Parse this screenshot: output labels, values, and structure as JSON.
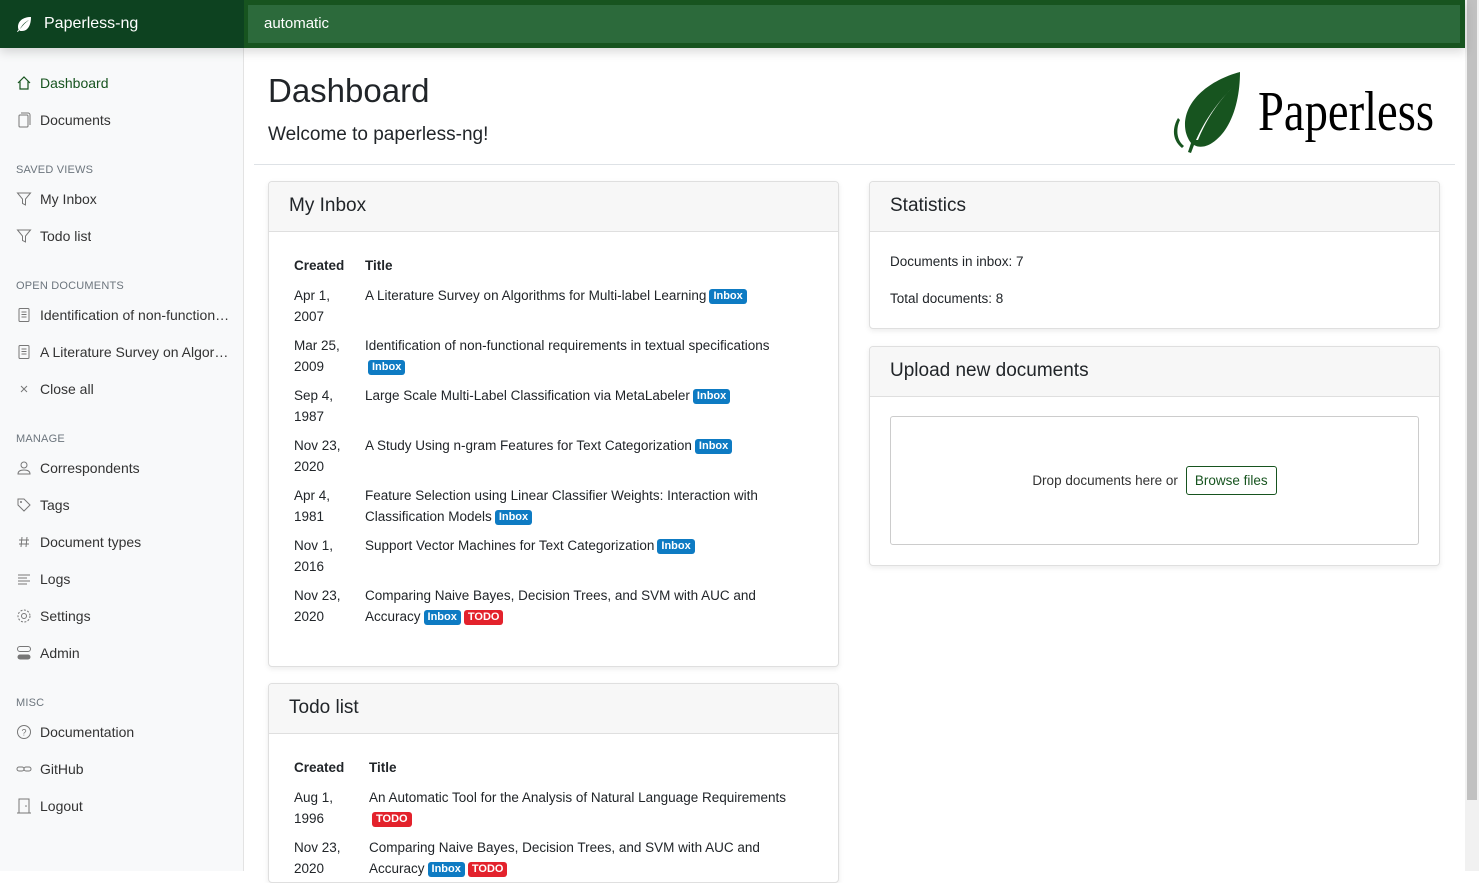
{
  "app": {
    "name": "Paperless-ng",
    "search_value": "automatic",
    "logo_text": "Paperless"
  },
  "colors": {
    "brand": "#17541f",
    "inbox_badge": "#0e7bc3",
    "todo_badge": "#e3222c"
  },
  "sidebar": {
    "items": [
      {
        "label": "Dashboard",
        "icon": "house-icon",
        "active": true
      },
      {
        "label": "Documents",
        "icon": "files-icon"
      }
    ],
    "saved_views_heading": "SAVED VIEWS",
    "saved_views": [
      {
        "label": "My Inbox",
        "icon": "funnel-icon"
      },
      {
        "label": "Todo list",
        "icon": "funnel-icon"
      }
    ],
    "open_heading": "OPEN DOCUMENTS",
    "open_documents": [
      {
        "label": "Identification of non-functional requirements in textual specifications",
        "icon": "file-text-icon"
      },
      {
        "label": "A Literature Survey on Algorithms for Multi-label Learning",
        "icon": "file-text-icon"
      },
      {
        "label": "Close all",
        "icon": "x-icon"
      }
    ],
    "manage_heading": "MANAGE",
    "manage": [
      {
        "label": "Correspondents",
        "icon": "person-icon"
      },
      {
        "label": "Tags",
        "icon": "tags-icon"
      },
      {
        "label": "Document types",
        "icon": "hash-icon"
      },
      {
        "label": "Logs",
        "icon": "text-left-icon"
      },
      {
        "label": "Settings",
        "icon": "gear-icon"
      },
      {
        "label": "Admin",
        "icon": "toggles-icon"
      }
    ],
    "misc_heading": "MISC",
    "misc": [
      {
        "label": "Documentation",
        "icon": "question-circle-icon"
      },
      {
        "label": "GitHub",
        "icon": "link-icon"
      },
      {
        "label": "Logout",
        "icon": "door-icon"
      }
    ]
  },
  "page": {
    "title": "Dashboard",
    "subtitle": "Welcome to paperless-ng!"
  },
  "inbox": {
    "title": "My Inbox",
    "col_created": "Created",
    "col_title": "Title",
    "rows": [
      {
        "date": "Apr 1, 2007",
        "title": "A Literature Survey on Algorithms for Multi-label Learning",
        "tags": [
          "Inbox"
        ]
      },
      {
        "date": "Mar 25, 2009",
        "title": "Identification of non-functional requirements in textual specifications",
        "tags": [
          "Inbox"
        ]
      },
      {
        "date": "Sep 4, 1987",
        "title": "Large Scale Multi-Label Classification via MetaLabeler",
        "tags": [
          "Inbox"
        ]
      },
      {
        "date": "Nov 23, 2020",
        "title": "A Study Using n-gram Features for Text Categorization",
        "tags": [
          "Inbox"
        ]
      },
      {
        "date": "Apr 4, 1981",
        "title": "Feature Selection using Linear Classifier Weights: Interaction with Classification Models",
        "tags": [
          "Inbox"
        ]
      },
      {
        "date": "Nov 1, 2016",
        "title": "Support Vector Machines for Text Categorization",
        "tags": [
          "Inbox"
        ]
      },
      {
        "date": "Nov 23, 2020",
        "title": "Comparing Naive Bayes, Decision Trees, and SVM with AUC and Accuracy",
        "tags": [
          "Inbox",
          "TODO"
        ]
      }
    ]
  },
  "todo": {
    "title": "Todo list",
    "col_created": "Created",
    "col_title": "Title",
    "rows": [
      {
        "date": "Aug 1, 1996",
        "title": "An Automatic Tool for the Analysis of Natural Language Requirements",
        "tags": [
          "TODO"
        ]
      },
      {
        "date": "Nov 23, 2020",
        "title": "Comparing Naive Bayes, Decision Trees, and SVM with AUC and Accuracy",
        "tags": [
          "Inbox",
          "TODO"
        ]
      }
    ]
  },
  "statistics": {
    "title": "Statistics",
    "inbox_label": "Documents in inbox: 7",
    "total_label": "Total documents: 8"
  },
  "upload": {
    "title": "Upload new documents",
    "drop_text": "Drop documents here or",
    "browse_label": "Browse files"
  }
}
